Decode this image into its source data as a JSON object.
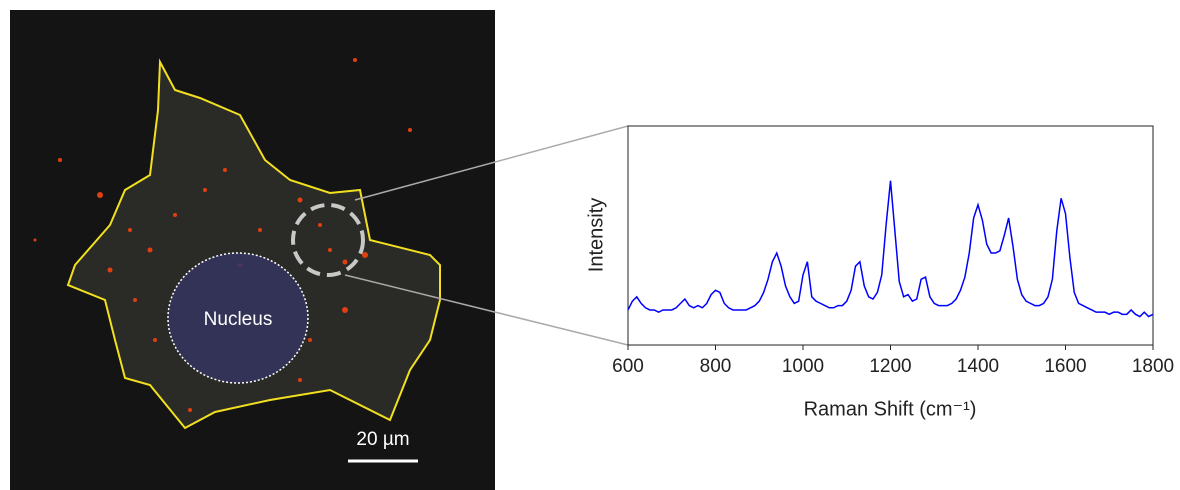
{
  "image": {
    "nucleus_label": "Nucleus",
    "scale_bar": "20 µm"
  },
  "chart_data": {
    "type": "line",
    "x": [
      600,
      610,
      620,
      630,
      640,
      650,
      660,
      670,
      680,
      690,
      700,
      710,
      720,
      730,
      740,
      750,
      760,
      770,
      780,
      790,
      800,
      810,
      820,
      830,
      840,
      850,
      860,
      870,
      880,
      890,
      900,
      910,
      920,
      930,
      940,
      950,
      960,
      970,
      980,
      990,
      1000,
      1010,
      1020,
      1030,
      1040,
      1050,
      1060,
      1070,
      1080,
      1090,
      1100,
      1110,
      1120,
      1130,
      1140,
      1150,
      1160,
      1170,
      1180,
      1190,
      1200,
      1210,
      1220,
      1230,
      1240,
      1250,
      1260,
      1270,
      1280,
      1290,
      1300,
      1310,
      1320,
      1330,
      1340,
      1350,
      1360,
      1370,
      1380,
      1390,
      1400,
      1410,
      1420,
      1430,
      1440,
      1450,
      1460,
      1470,
      1480,
      1490,
      1500,
      1510,
      1520,
      1530,
      1540,
      1550,
      1560,
      1570,
      1580,
      1590,
      1600,
      1610,
      1620,
      1630,
      1640,
      1650,
      1660,
      1670,
      1680,
      1690,
      1700,
      1710,
      1720,
      1730,
      1740,
      1750,
      1760,
      1770,
      1780,
      1790,
      1800
    ],
    "series": [
      {
        "color": "#0000ff",
        "values": [
          16,
          20,
          22,
          19,
          17,
          16,
          16,
          15,
          16,
          16,
          16,
          17,
          19,
          21,
          18,
          17,
          18,
          17,
          19,
          23,
          25,
          24,
          19,
          17,
          16,
          16,
          16,
          16,
          17,
          18,
          20,
          24,
          30,
          38,
          42,
          36,
          27,
          22,
          19,
          20,
          32,
          38,
          22,
          20,
          19,
          18,
          17,
          17,
          18,
          18,
          20,
          25,
          36,
          38,
          27,
          22,
          21,
          24,
          32,
          55,
          75,
          52,
          29,
          22,
          23,
          20,
          21,
          30,
          31,
          22,
          19,
          18,
          18,
          18,
          19,
          21,
          25,
          31,
          42,
          58,
          64,
          57,
          46,
          42,
          42,
          43,
          50,
          58,
          45,
          30,
          23,
          20,
          19,
          18,
          18,
          19,
          22,
          30,
          52,
          67,
          60,
          40,
          24,
          19,
          18,
          17,
          16,
          15,
          15,
          15,
          14,
          15,
          15,
          14,
          14,
          16,
          14,
          13,
          15,
          13,
          14
        ]
      }
    ],
    "xlim": [
      600,
      1800
    ],
    "xticks": [
      600,
      800,
      1000,
      1200,
      1400,
      1600,
      1800
    ],
    "ylim": [
      0,
      100
    ],
    "xlabel": "Raman Shift (cm⁻¹)",
    "ylabel": "Intensity"
  }
}
